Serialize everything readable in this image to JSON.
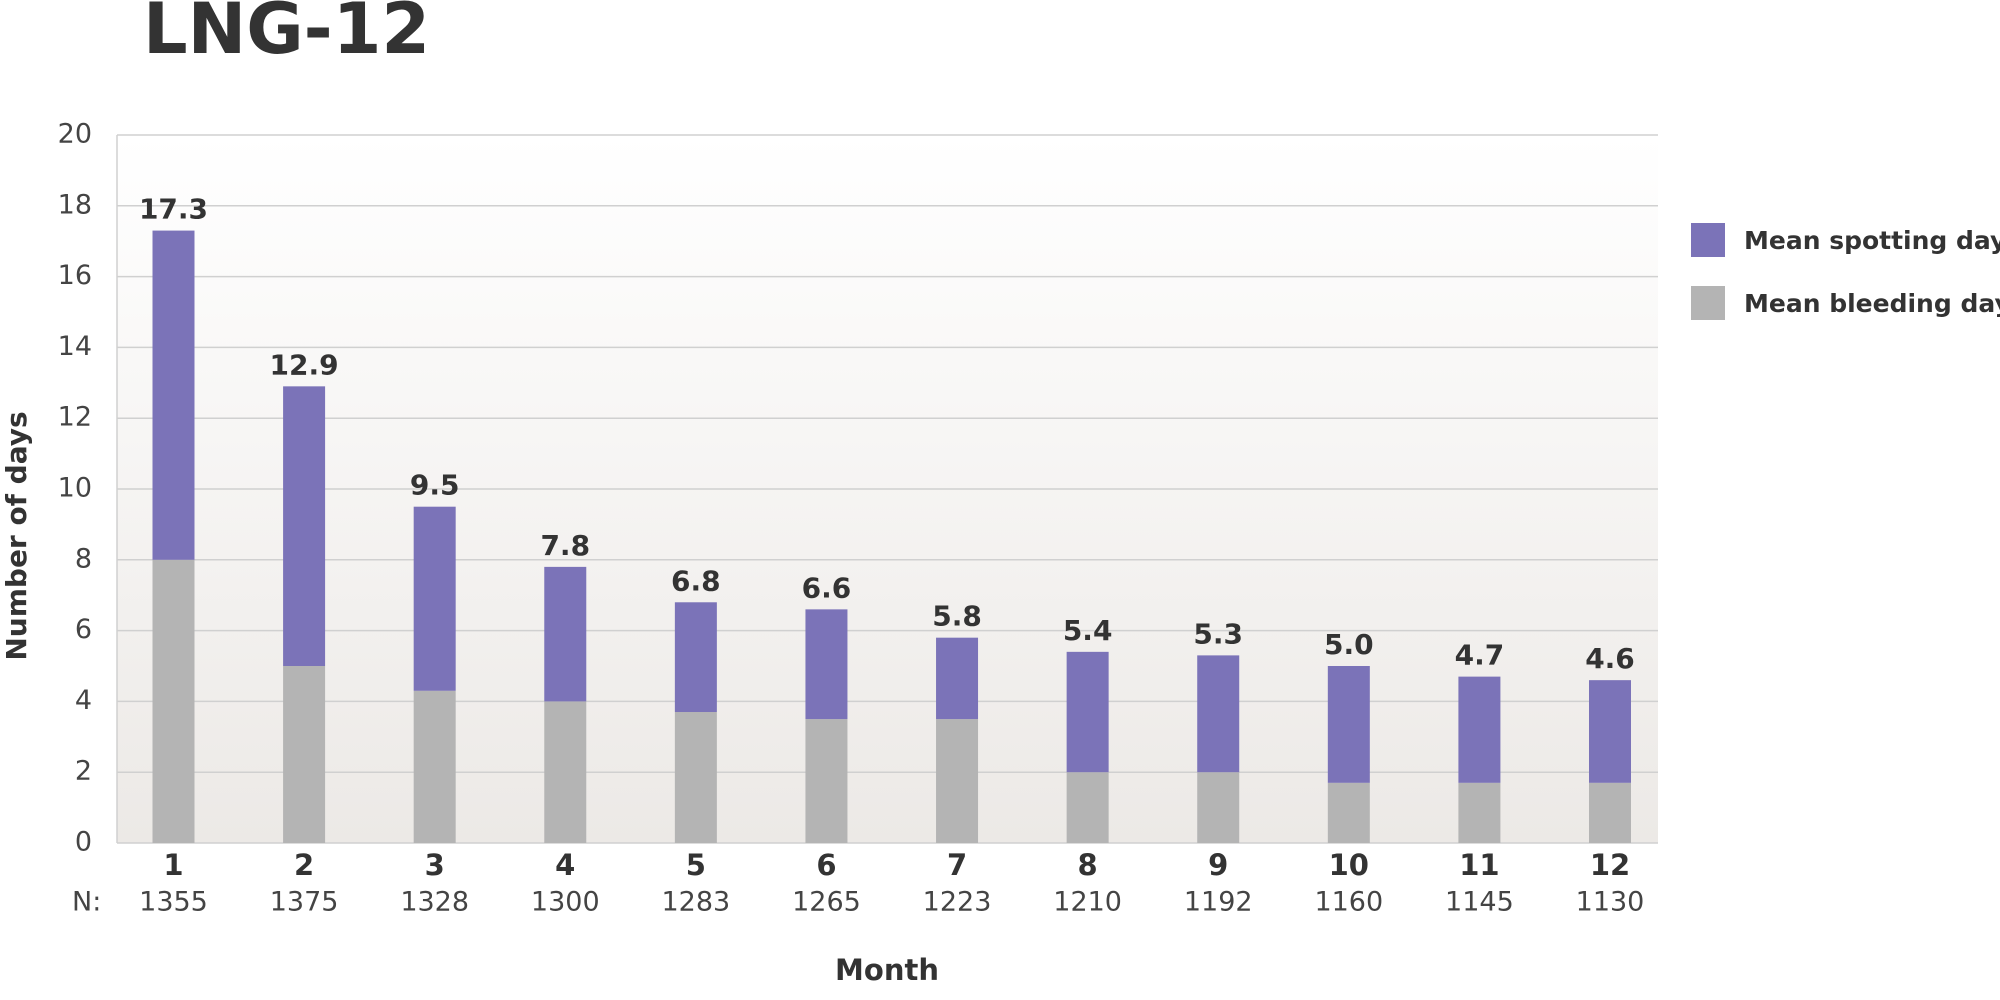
{
  "chart_data": {
    "type": "stacked_bar",
    "title": "LNG-12",
    "x_label": "Month",
    "y_label": "Number of days",
    "categories": [
      "1",
      "2",
      "3",
      "4",
      "5",
      "6",
      "7",
      "8",
      "9",
      "10",
      "11",
      "12"
    ],
    "n_label": "N:",
    "n_values": [
      1355,
      1375,
      1328,
      1300,
      1283,
      1265,
      1223,
      1210,
      1192,
      1160,
      1145,
      1130
    ],
    "series": [
      {
        "name": "Mean bleeding days",
        "color": "#b4b4b4",
        "values": [
          8.0,
          5.0,
          4.3,
          4.0,
          3.7,
          3.5,
          3.5,
          2.0,
          2.0,
          1.7,
          1.7,
          1.7
        ]
      },
      {
        "name": "Mean spotting days",
        "color": "#7b73b8",
        "values": [
          9.3,
          7.9,
          5.2,
          3.8,
          3.1,
          3.1,
          2.3,
          3.4,
          3.3,
          3.3,
          3.0,
          2.9
        ]
      }
    ],
    "totals": [
      17.3,
      12.9,
      9.5,
      7.8,
      6.8,
      6.6,
      5.8,
      5.4,
      5.3,
      5.0,
      4.7,
      4.6
    ],
    "total_labels": [
      "17.3",
      "12.9",
      "9.5",
      "7.8",
      "6.8",
      "6.6",
      "5.8",
      "5.4",
      "5.3",
      "5.0",
      "4.7",
      "4.6"
    ],
    "ylim": [
      0,
      20
    ],
    "yticks": [
      0,
      2,
      4,
      6,
      8,
      10,
      12,
      14,
      16,
      18,
      20
    ],
    "grid": true,
    "legend": "right"
  }
}
